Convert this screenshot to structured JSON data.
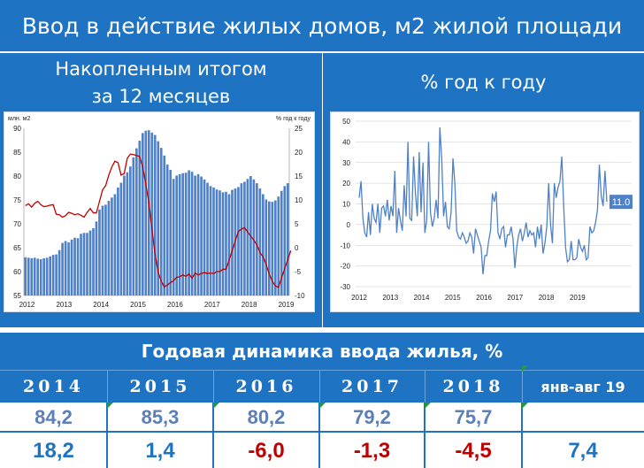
{
  "header": {
    "title": "Ввод в действие жилых домов, м2 жилой площади"
  },
  "left_panel": {
    "title_line1": "Накопленным итогом",
    "title_line2": "за 12 месяцев"
  },
  "right_panel": {
    "title": "% год к году"
  },
  "chart_data": [
    {
      "type": "bar",
      "overlay_type": "line",
      "axis_title_left": "млн. м2",
      "axis_title_right": "% год к году",
      "left_axis": {
        "ylim": [
          55,
          90
        ],
        "ticks": [
          55,
          60,
          65,
          70,
          75,
          80,
          85,
          90
        ]
      },
      "right_axis": {
        "ylim": [
          -10,
          25
        ],
        "ticks": [
          -10,
          -5,
          0,
          5,
          10,
          15,
          20,
          25
        ]
      },
      "x_labels": [
        "2012",
        "2013",
        "2014",
        "2015",
        "2016",
        "2017",
        "2018",
        "2019"
      ],
      "colors": {
        "bars": "#4f81c8",
        "line": "#c00000"
      },
      "series": [
        {
          "axis": "left",
          "values": [
            63.0,
            62.9,
            62.8,
            62.9,
            62.7,
            62.6,
            62.8,
            62.9,
            63.2,
            63.5,
            63.6,
            64.5,
            66.0,
            66.4,
            66.1,
            66.7,
            67.1,
            67.0,
            67.9,
            68.1,
            68.1,
            68.6,
            69.1,
            70.5,
            73.0,
            73.8,
            74.0,
            74.8,
            75.5,
            76.2,
            77.6,
            78.6,
            80.1,
            80.8,
            82.0,
            83.9,
            85.8,
            87.4,
            89.0,
            89.5,
            89.6,
            89.1,
            88.6,
            87.3,
            85.9,
            84.3,
            82.4,
            81.3,
            79.4,
            80.1,
            80.4,
            80.6,
            80.7,
            81.2,
            80.9,
            80.1,
            80.4,
            79.9,
            79.3,
            78.6,
            77.9,
            77.6,
            77.2,
            77.0,
            76.6,
            76.7,
            76.2,
            77.1,
            77.4,
            77.7,
            78.5,
            78.8,
            79.4,
            80.0,
            79.3,
            78.5,
            77.4,
            76.2,
            75.1,
            74.7,
            74.6,
            74.9,
            75.7,
            76.9,
            77.9,
            78.5
          ]
        },
        {
          "axis": "right",
          "values": [
            8.8,
            9.2,
            8.5,
            9.3,
            9.7,
            9.0,
            8.6,
            8.7,
            8.9,
            9.0,
            7.0,
            6.9,
            6.4,
            6.7,
            7.4,
            7.2,
            6.9,
            7.1,
            6.8,
            6.4,
            7.4,
            8.2,
            7.3,
            7.3,
            9.7,
            12.1,
            13.0,
            15.2,
            16.9,
            18.1,
            17.8,
            15.2,
            15.5,
            18.7,
            19.6,
            19.5,
            19.3,
            19.1,
            16.9,
            13.3,
            9.5,
            3.9,
            -1.3,
            -5.1,
            -7.0,
            -8.2,
            -7.8,
            -7.3,
            -6.9,
            -6.2,
            -6.1,
            -5.7,
            -6.0,
            -5.5,
            -6.4,
            -5.3,
            -5.7,
            -5.4,
            -5.2,
            -5.4,
            -5.3,
            -5.4,
            -5.0,
            -5.0,
            -4.5,
            -4.5,
            -2.6,
            -0.6,
            1.4,
            3.4,
            3.9,
            4.2,
            3.3,
            2.4,
            1.6,
            0.6,
            -1.0,
            -1.9,
            -3.5,
            -5.5,
            -7.0,
            -8.0,
            -8.3,
            -6.3,
            -4.4,
            -2.5,
            -0.6
          ]
        }
      ]
    },
    {
      "type": "line",
      "ylim": [
        -30,
        50
      ],
      "y_ticks": [
        -30,
        -20,
        -10,
        0,
        10,
        20,
        30,
        40,
        50
      ],
      "x_labels": [
        "2012",
        "2013",
        "2014",
        "2015",
        "2016",
        "2017",
        "2018",
        "2019"
      ],
      "end_label": "11.0",
      "colors": {
        "line": "#4f81c8",
        "grid": "#c8c8c8",
        "label_bg": "#4f81c8"
      },
      "series": [
        {
          "values": [
            13.0,
            21.0,
            3.0,
            -4.0,
            -6.0,
            6.0,
            -5.0,
            10.0,
            3.0,
            1.0,
            10.0,
            -4.0,
            8.0,
            9.0,
            4.0,
            12.0,
            2.0,
            9.0,
            4.0,
            26.0,
            -4.0,
            8.0,
            2.0,
            -3.0,
            19.0,
            4.0,
            40.0,
            3.0,
            2.0,
            33.0,
            15.0,
            4.0,
            35.0,
            6.0,
            30.0,
            -4.0,
            2.0,
            40.0,
            6.0,
            -1.0,
            3.0,
            12.0,
            3.0,
            47.0,
            32.0,
            4.0,
            11.0,
            -1.0,
            -2.0,
            6.0,
            32.0,
            20.0,
            -3.0,
            -6.0,
            -7.0,
            -4.0,
            -6.0,
            -9.0,
            -8.0,
            -4.0,
            -6.0,
            -14.0,
            -2.0,
            -5.0,
            -8.0,
            -11.0,
            -24.0,
            -15.0,
            -15.0,
            -8.0,
            -3.0,
            15.0,
            11.0,
            16.0,
            -4.0,
            -7.0,
            -2.0,
            -1.0,
            -11.0,
            -5.0,
            -5.0,
            -1.0,
            -7.0,
            -21.0,
            -11.0,
            -5.0,
            -2.0,
            -8.0,
            -4.0,
            1.0,
            -6.0,
            -3.0,
            -5.0,
            -4.0,
            -11.0,
            -1.0,
            -7.0,
            0.0,
            -14.0,
            -9.0,
            -1.0,
            20.0,
            0.0,
            -9.0,
            20.0,
            13.0,
            18.0,
            21.0,
            33.0,
            9.0,
            -11.0,
            -18.0,
            -17.0,
            -8.0,
            -17.0,
            -17.0,
            -16.0,
            -7.0,
            -11.0,
            -13.0,
            -10.0,
            -17.0,
            -16.0,
            -1.0,
            -4.0,
            -3.0,
            1.0,
            7.0,
            29.0,
            14.0,
            9.0,
            26.0,
            11.0
          ]
        }
      ]
    }
  ],
  "table": {
    "title": "Годовая динамика ввода жилья, %",
    "years": [
      "2014",
      "2015",
      "2016",
      "2017",
      "2018",
      "янв-авг 19"
    ],
    "row1": [
      "84,2",
      "85,3",
      "80,2",
      "79,2",
      "75,7",
      ""
    ],
    "row2": [
      "18,2",
      "1,4",
      "-6,0",
      "-1,3",
      "-4,5",
      "7,4"
    ],
    "colors": {
      "positive": "#1f73c3",
      "negative": "#c00000",
      "row1": "#5b7fb8",
      "marker": "#1f9c3a"
    }
  }
}
